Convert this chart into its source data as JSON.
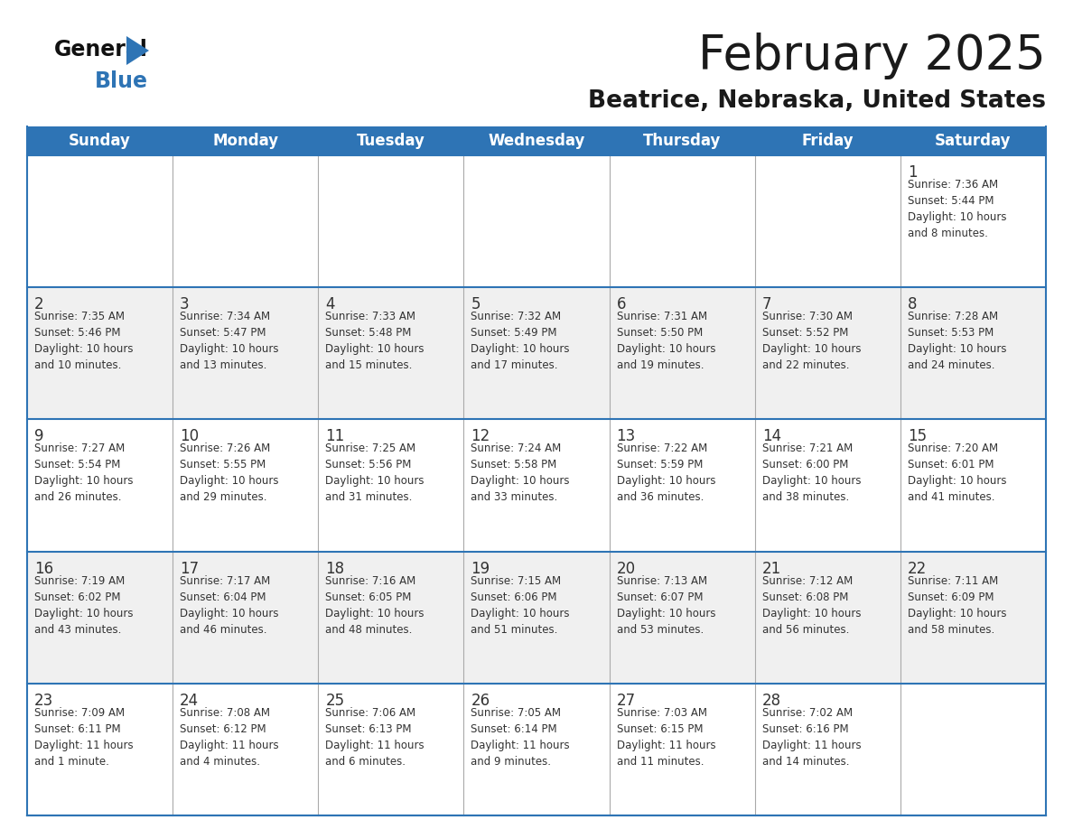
{
  "title": "February 2025",
  "subtitle": "Beatrice, Nebraska, United States",
  "days_of_week": [
    "Sunday",
    "Monday",
    "Tuesday",
    "Wednesday",
    "Thursday",
    "Friday",
    "Saturday"
  ],
  "header_bg": "#2E74B5",
  "header_text": "#FFFFFF",
  "cell_bg_white": "#FFFFFF",
  "cell_bg_gray": "#F0F0F0",
  "border_color": "#2E74B5",
  "divider_color": "#AAAAAA",
  "text_color": "#333333",
  "title_color": "#1a1a1a",
  "subtitle_color": "#1a1a1a",
  "logo_general_color": "#111111",
  "logo_blue_color": "#2E74B5",
  "weeks": [
    [
      {
        "day": null,
        "sunrise": null,
        "sunset": null,
        "daylight": null
      },
      {
        "day": null,
        "sunrise": null,
        "sunset": null,
        "daylight": null
      },
      {
        "day": null,
        "sunrise": null,
        "sunset": null,
        "daylight": null
      },
      {
        "day": null,
        "sunrise": null,
        "sunset": null,
        "daylight": null
      },
      {
        "day": null,
        "sunrise": null,
        "sunset": null,
        "daylight": null
      },
      {
        "day": null,
        "sunrise": null,
        "sunset": null,
        "daylight": null
      },
      {
        "day": 1,
        "sunrise": "7:36 AM",
        "sunset": "5:44 PM",
        "daylight": "10 hours\nand 8 minutes."
      }
    ],
    [
      {
        "day": 2,
        "sunrise": "7:35 AM",
        "sunset": "5:46 PM",
        "daylight": "10 hours\nand 10 minutes."
      },
      {
        "day": 3,
        "sunrise": "7:34 AM",
        "sunset": "5:47 PM",
        "daylight": "10 hours\nand 13 minutes."
      },
      {
        "day": 4,
        "sunrise": "7:33 AM",
        "sunset": "5:48 PM",
        "daylight": "10 hours\nand 15 minutes."
      },
      {
        "day": 5,
        "sunrise": "7:32 AM",
        "sunset": "5:49 PM",
        "daylight": "10 hours\nand 17 minutes."
      },
      {
        "day": 6,
        "sunrise": "7:31 AM",
        "sunset": "5:50 PM",
        "daylight": "10 hours\nand 19 minutes."
      },
      {
        "day": 7,
        "sunrise": "7:30 AM",
        "sunset": "5:52 PM",
        "daylight": "10 hours\nand 22 minutes."
      },
      {
        "day": 8,
        "sunrise": "7:28 AM",
        "sunset": "5:53 PM",
        "daylight": "10 hours\nand 24 minutes."
      }
    ],
    [
      {
        "day": 9,
        "sunrise": "7:27 AM",
        "sunset": "5:54 PM",
        "daylight": "10 hours\nand 26 minutes."
      },
      {
        "day": 10,
        "sunrise": "7:26 AM",
        "sunset": "5:55 PM",
        "daylight": "10 hours\nand 29 minutes."
      },
      {
        "day": 11,
        "sunrise": "7:25 AM",
        "sunset": "5:56 PM",
        "daylight": "10 hours\nand 31 minutes."
      },
      {
        "day": 12,
        "sunrise": "7:24 AM",
        "sunset": "5:58 PM",
        "daylight": "10 hours\nand 33 minutes."
      },
      {
        "day": 13,
        "sunrise": "7:22 AM",
        "sunset": "5:59 PM",
        "daylight": "10 hours\nand 36 minutes."
      },
      {
        "day": 14,
        "sunrise": "7:21 AM",
        "sunset": "6:00 PM",
        "daylight": "10 hours\nand 38 minutes."
      },
      {
        "day": 15,
        "sunrise": "7:20 AM",
        "sunset": "6:01 PM",
        "daylight": "10 hours\nand 41 minutes."
      }
    ],
    [
      {
        "day": 16,
        "sunrise": "7:19 AM",
        "sunset": "6:02 PM",
        "daylight": "10 hours\nand 43 minutes."
      },
      {
        "day": 17,
        "sunrise": "7:17 AM",
        "sunset": "6:04 PM",
        "daylight": "10 hours\nand 46 minutes."
      },
      {
        "day": 18,
        "sunrise": "7:16 AM",
        "sunset": "6:05 PM",
        "daylight": "10 hours\nand 48 minutes."
      },
      {
        "day": 19,
        "sunrise": "7:15 AM",
        "sunset": "6:06 PM",
        "daylight": "10 hours\nand 51 minutes."
      },
      {
        "day": 20,
        "sunrise": "7:13 AM",
        "sunset": "6:07 PM",
        "daylight": "10 hours\nand 53 minutes."
      },
      {
        "day": 21,
        "sunrise": "7:12 AM",
        "sunset": "6:08 PM",
        "daylight": "10 hours\nand 56 minutes."
      },
      {
        "day": 22,
        "sunrise": "7:11 AM",
        "sunset": "6:09 PM",
        "daylight": "10 hours\nand 58 minutes."
      }
    ],
    [
      {
        "day": 23,
        "sunrise": "7:09 AM",
        "sunset": "6:11 PM",
        "daylight": "11 hours\nand 1 minute."
      },
      {
        "day": 24,
        "sunrise": "7:08 AM",
        "sunset": "6:12 PM",
        "daylight": "11 hours\nand 4 minutes."
      },
      {
        "day": 25,
        "sunrise": "7:06 AM",
        "sunset": "6:13 PM",
        "daylight": "11 hours\nand 6 minutes."
      },
      {
        "day": 26,
        "sunrise": "7:05 AM",
        "sunset": "6:14 PM",
        "daylight": "11 hours\nand 9 minutes."
      },
      {
        "day": 27,
        "sunrise": "7:03 AM",
        "sunset": "6:15 PM",
        "daylight": "11 hours\nand 11 minutes."
      },
      {
        "day": 28,
        "sunrise": "7:02 AM",
        "sunset": "6:16 PM",
        "daylight": "11 hours\nand 14 minutes."
      },
      {
        "day": null,
        "sunrise": null,
        "sunset": null,
        "daylight": null
      }
    ]
  ]
}
